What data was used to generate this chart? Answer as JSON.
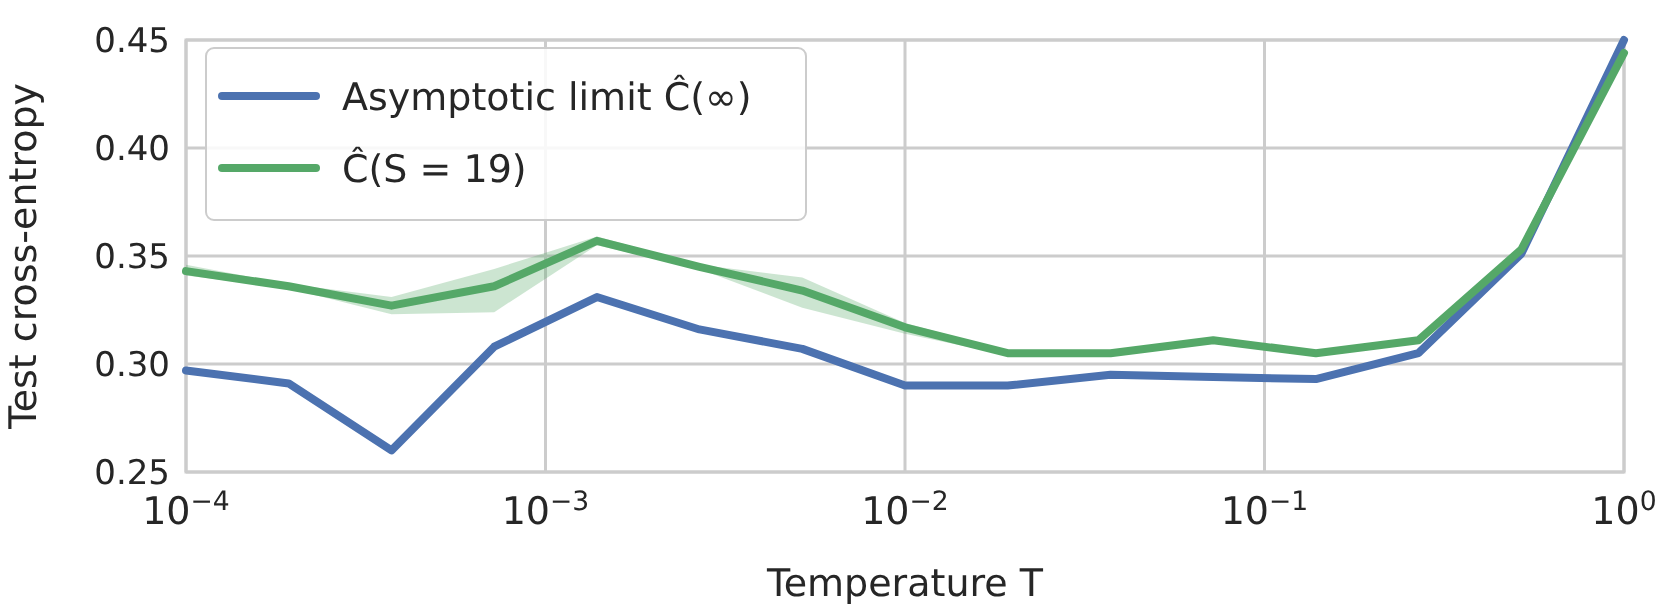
{
  "chart_data": {
    "type": "line",
    "xlabel": "Temperature T",
    "ylabel": "Test cross-entropy",
    "x": [
      0.0001,
      0.000193,
      0.000373,
      0.00072,
      0.00139,
      0.00268,
      0.00518,
      0.01,
      0.0193,
      0.0373,
      0.072,
      0.139,
      0.268,
      0.518,
      1
    ],
    "series": [
      {
        "name": "Asymptotic limit Ĉ(∞)",
        "color": "#4c72b0",
        "values": [
          0.297,
          0.291,
          0.26,
          0.308,
          0.331,
          0.316,
          0.307,
          0.29,
          0.29,
          0.295,
          0.294,
          0.293,
          0.305,
          0.351,
          0.45
        ]
      },
      {
        "name": "Ĉ(S = 19)",
        "color": "#55a868",
        "values": [
          0.343,
          0.336,
          0.327,
          0.336,
          0.357,
          0.345,
          0.334,
          0.317,
          0.305,
          0.305,
          0.311,
          0.305,
          0.311,
          0.353,
          0.444
        ],
        "lower": [
          0.341,
          0.335,
          0.323,
          0.324,
          0.355,
          0.344,
          0.326,
          0.314,
          0.304,
          0.304,
          0.31,
          0.304,
          0.31,
          0.352,
          0.443
        ],
        "upper": [
          0.346,
          0.337,
          0.331,
          0.344,
          0.359,
          0.346,
          0.34,
          0.319,
          0.306,
          0.306,
          0.312,
          0.306,
          0.312,
          0.354,
          0.445
        ]
      }
    ],
    "log": "x",
    "xlim": [
      0.0001,
      1
    ],
    "xticks": [
      {
        "value": 0.0001,
        "label": "10$^{−4}$"
      },
      {
        "value": 0.001,
        "label": "10$^{−3}$"
      },
      {
        "value": 0.01,
        "label": "10$^{−2}$"
      },
      {
        "value": 0.1,
        "label": "10$^{−1}$"
      },
      {
        "value": 1,
        "label": "10$^{0}$"
      }
    ],
    "ylim": [
      0.25,
      0.45
    ],
    "yticks": [
      {
        "value": 0.25,
        "label": "0.25"
      },
      {
        "value": 0.3,
        "label": "0.30"
      },
      {
        "value": 0.35,
        "label": "0.35"
      },
      {
        "value": 0.4,
        "label": "0.40"
      },
      {
        "value": 0.45,
        "label": "0.45"
      }
    ],
    "grid": true,
    "legend": "top left"
  }
}
